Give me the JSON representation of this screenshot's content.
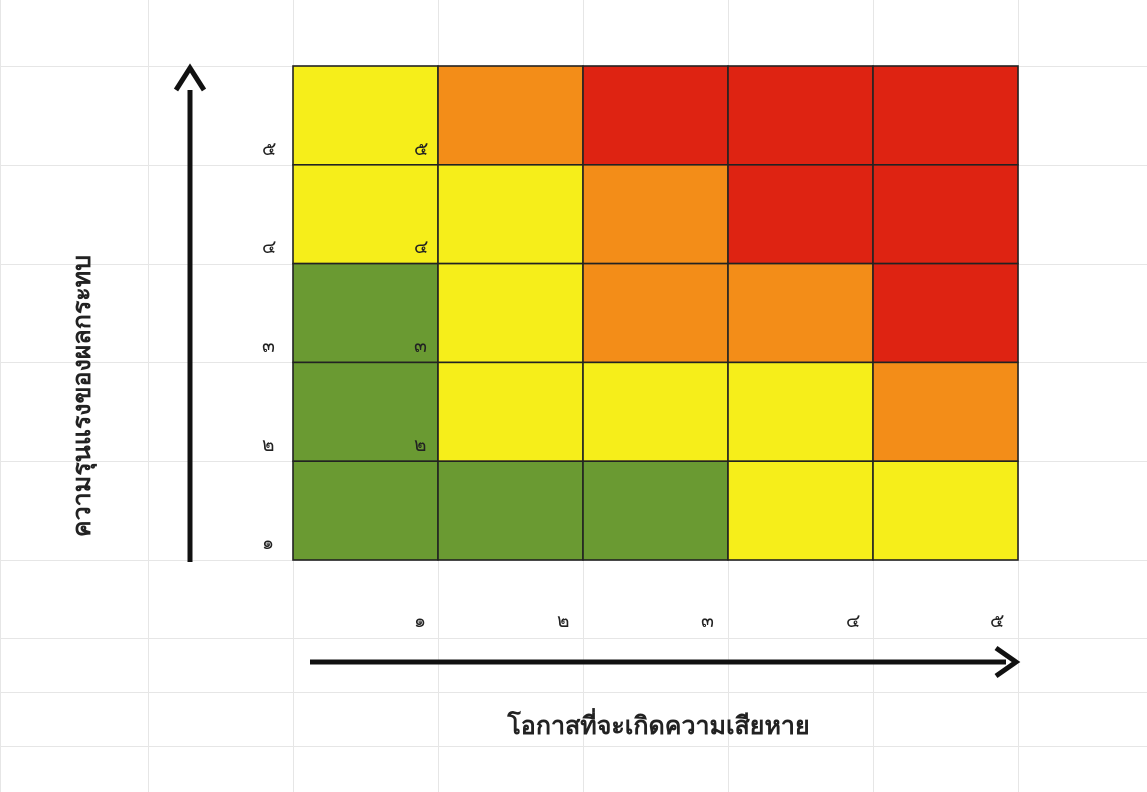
{
  "chart_data": {
    "type": "heatmap",
    "title": "",
    "xlabel": "โอกาสที่จะเกิดความเสียหาย",
    "ylabel": "ความรุนแรงของผลกระทบ",
    "x_ticks": [
      "๑",
      "๒",
      "๓",
      "๔",
      "๕"
    ],
    "y_ticks": [
      "๑",
      "๒",
      "๓",
      "๔",
      "๕"
    ],
    "y_ticks_inner": [
      "๒",
      "๓",
      "๔",
      "๕"
    ],
    "cell_levels_top_to_bottom": [
      [
        "yellow",
        "orange",
        "red",
        "red",
        "red"
      ],
      [
        "yellow",
        "yellow",
        "orange",
        "red",
        "red"
      ],
      [
        "green",
        "yellow",
        "orange",
        "orange",
        "red"
      ],
      [
        "green",
        "yellow",
        "yellow",
        "yellow",
        "orange"
      ],
      [
        "green",
        "green",
        "green",
        "yellow",
        "yellow"
      ]
    ],
    "colors": {
      "green": "#6a9a32",
      "yellow": "#f6ee1a",
      "orange": "#f38d18",
      "red": "#de2312"
    }
  }
}
